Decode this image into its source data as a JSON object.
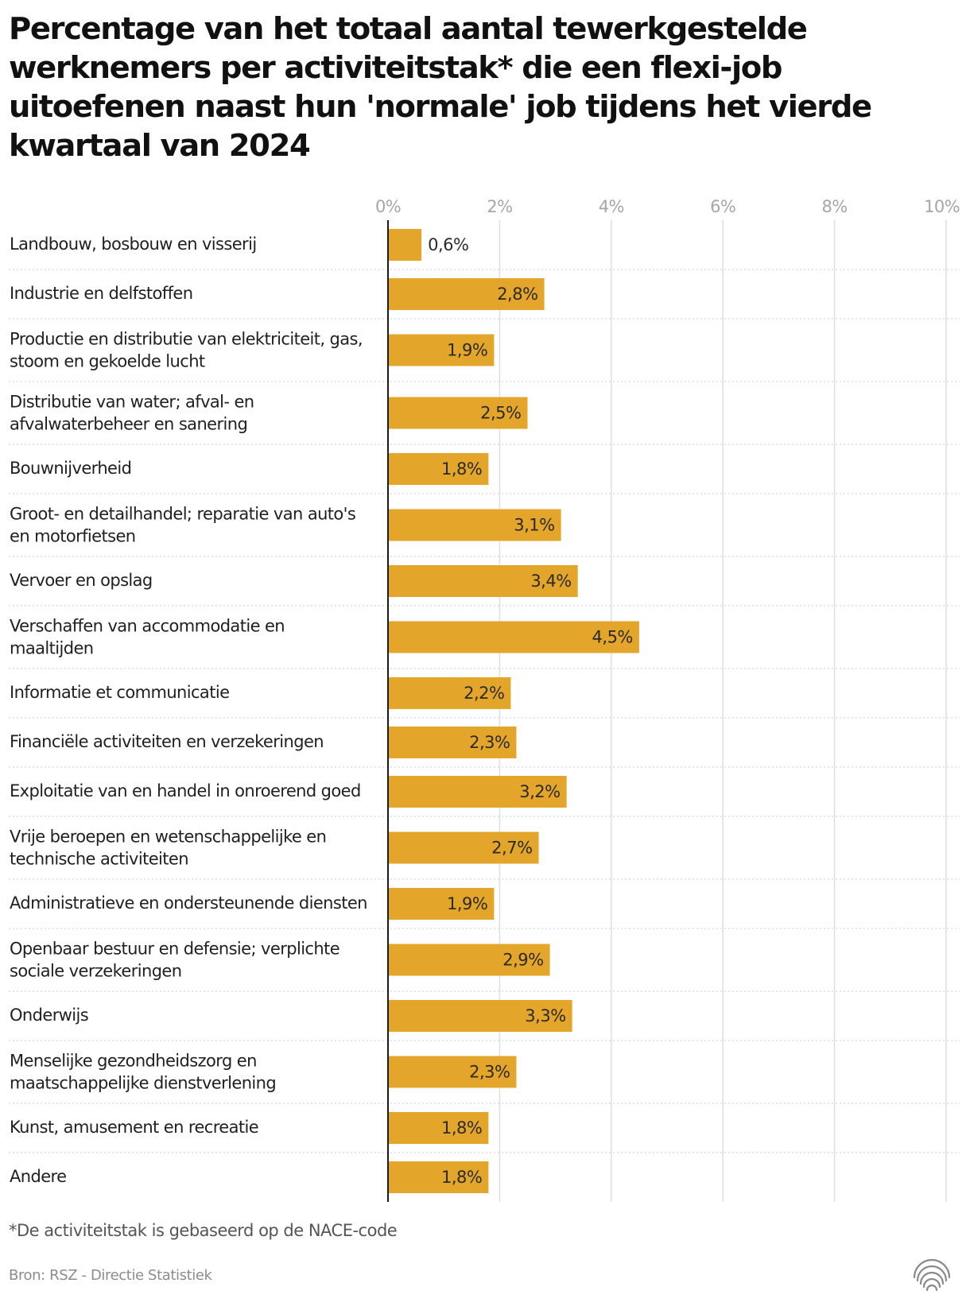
{
  "title": "Percentage van het totaal aantal tewerkgestelde werknemers per activiteitstak* die een flexi-job uitoefenen naast hun 'normale' job tijdens het vierde kwartaal van 2024",
  "footnote": "*De activiteitstak is gebaseerd op de NACE-code",
  "source": "Bron: RSZ - Directie Statistiek",
  "logo": {
    "icon": "broadcaster-logo-icon"
  },
  "colors": {
    "bar": "#E3A52A",
    "grid": "#dedede",
    "axis": "#1a1a1a",
    "separator": "#cccccc"
  },
  "chart_data": {
    "type": "bar",
    "orientation": "horizontal",
    "xlim": [
      0,
      10
    ],
    "xticks": [
      "0%",
      "2%",
      "4%",
      "6%",
      "8%",
      "10%"
    ],
    "grid": true,
    "categories": [
      [
        "Landbouw, bosbouw en visserij"
      ],
      [
        "Industrie en delfstoffen"
      ],
      [
        "Productie en distributie van elektriciteit, gas,",
        "stoom en gekoelde lucht"
      ],
      [
        "Distributie van water; afval- en",
        "afvalwaterbeheer en sanering"
      ],
      [
        "Bouwnijverheid"
      ],
      [
        "Groot- en detailhandel; reparatie van auto's",
        "en motorfietsen"
      ],
      [
        "Vervoer en opslag"
      ],
      [
        "Verschaffen van accommodatie en",
        "maaltijden"
      ],
      [
        "Informatie et communicatie"
      ],
      [
        "Financiële activiteiten en verzekeringen"
      ],
      [
        "Exploitatie van en handel in onroerend goed"
      ],
      [
        "Vrije beroepen en wetenschappelijke en",
        "technische activiteiten"
      ],
      [
        "Administratieve en ondersteunende diensten"
      ],
      [
        "Openbaar bestuur en defensie; verplichte",
        "sociale verzekeringen"
      ],
      [
        "Onderwijs"
      ],
      [
        "Menselijke gezondheidszorg en",
        "maatschappelijke dienstverlening"
      ],
      [
        "Kunst, amusement en recreatie"
      ],
      [
        "Andere"
      ]
    ],
    "values": [
      0.6,
      2.8,
      1.9,
      2.5,
      1.8,
      3.1,
      3.4,
      4.5,
      2.2,
      2.3,
      3.2,
      2.7,
      1.9,
      2.9,
      3.3,
      2.3,
      1.8,
      1.8
    ],
    "value_labels": [
      "0,6%",
      "2,8%",
      "1,9%",
      "2,5%",
      "1,8%",
      "3,1%",
      "3,4%",
      "4,5%",
      "2,2%",
      "2,3%",
      "3,2%",
      "2,7%",
      "1,9%",
      "2,9%",
      "3,3%",
      "2,3%",
      "1,8%",
      "1,8%"
    ]
  }
}
